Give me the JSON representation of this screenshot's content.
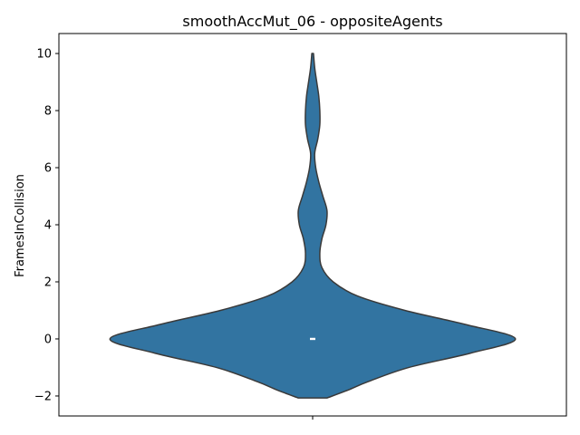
{
  "chart_data": {
    "type": "violin",
    "title": "smoothAccMut_06 - oppositeAgents",
    "xlabel": "",
    "ylabel": "FramesInCollision",
    "ylim": [
      -2.7,
      10.7
    ],
    "yticks": [
      -2,
      0,
      2,
      4,
      6,
      8,
      10
    ],
    "ytick_labels": [
      "−2",
      "0",
      "2",
      "4",
      "6",
      "8",
      "10"
    ],
    "grid": false,
    "fill_color": "#3274a1",
    "edge_color": "#3a3a3a",
    "violin": {
      "median": 0,
      "quartiles": [
        0,
        0
      ],
      "density_profile": [
        {
          "y": -2.07,
          "half_width": 0.07
        },
        {
          "y": -1.8,
          "half_width": 0.17
        },
        {
          "y": -1.5,
          "half_width": 0.27
        },
        {
          "y": -1.0,
          "half_width": 0.47
        },
        {
          "y": -0.5,
          "half_width": 0.77
        },
        {
          "y": 0.0,
          "half_width": 0.99
        },
        {
          "y": 0.5,
          "half_width": 0.75
        },
        {
          "y": 1.0,
          "half_width": 0.45
        },
        {
          "y": 1.5,
          "half_width": 0.22
        },
        {
          "y": 2.0,
          "half_width": 0.1
        },
        {
          "y": 2.5,
          "half_width": 0.045
        },
        {
          "y": 3.0,
          "half_width": 0.035
        },
        {
          "y": 3.5,
          "half_width": 0.045
        },
        {
          "y": 4.0,
          "half_width": 0.065
        },
        {
          "y": 4.5,
          "half_width": 0.07
        },
        {
          "y": 5.0,
          "half_width": 0.05
        },
        {
          "y": 5.5,
          "half_width": 0.03
        },
        {
          "y": 6.0,
          "half_width": 0.015
        },
        {
          "y": 6.5,
          "half_width": 0.01
        },
        {
          "y": 7.0,
          "half_width": 0.025
        },
        {
          "y": 7.5,
          "half_width": 0.035
        },
        {
          "y": 8.0,
          "half_width": 0.035
        },
        {
          "y": 8.5,
          "half_width": 0.03
        },
        {
          "y": 9.0,
          "half_width": 0.02
        },
        {
          "y": 9.5,
          "half_width": 0.01
        },
        {
          "y": 10.0,
          "half_width": 0.004
        }
      ]
    }
  }
}
